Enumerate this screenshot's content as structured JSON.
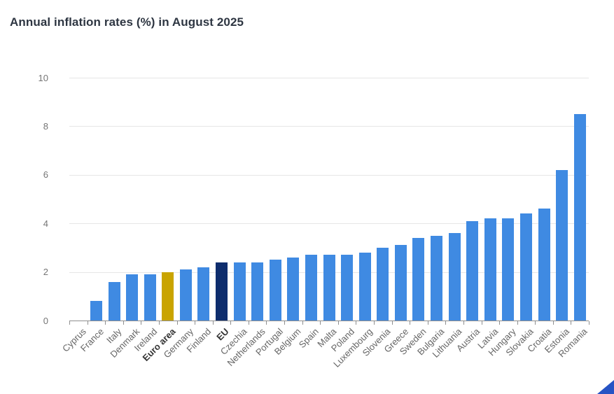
{
  "header": {
    "title": "Annual inflation rates (%) in August 2025"
  },
  "chart_data": {
    "type": "bar",
    "title": "Annual inflation rates (%) in August 2025",
    "xlabel": "",
    "ylabel": "",
    "ylim": [
      0,
      10
    ],
    "yticks": [
      0,
      2,
      4,
      6,
      8,
      10
    ],
    "grid": true,
    "legend": false,
    "categories": [
      "Cyprus",
      "France",
      "Italy",
      "Denmark",
      "Ireland",
      "Euro area",
      "Germany",
      "Finland",
      "EU",
      "Czechia",
      "Netherlands",
      "Portugal",
      "Belgium",
      "Spain",
      "Malta",
      "Poland",
      "Luxembourg",
      "Slovenia",
      "Greece",
      "Sweden",
      "Bulgaria",
      "Lithuania",
      "Austria",
      "Latvia",
      "Hungary",
      "Slovakia",
      "Croatia",
      "Estonia",
      "Romania"
    ],
    "values": [
      0.0,
      0.8,
      1.6,
      1.9,
      1.9,
      2.0,
      2.1,
      2.2,
      2.4,
      2.4,
      2.4,
      2.5,
      2.6,
      2.7,
      2.7,
      2.7,
      2.8,
      3.0,
      3.1,
      3.4,
      3.5,
      3.6,
      4.1,
      4.2,
      4.2,
      4.4,
      4.6,
      6.2,
      8.5
    ],
    "emphasized_categories": [
      "Euro area",
      "EU"
    ],
    "bar_colors_by_category": {
      "Euro area": "#c9a400",
      "EU": "#0e2d6d"
    },
    "colors": {
      "bar_default": "#3f8ae2",
      "gridline": "#e6e6e6",
      "axis": "#8f8f8f",
      "axis_label": "#757575",
      "category_label": "#666666",
      "category_label_emphasis": "#333333",
      "title": "#2e3642",
      "corner_triangle": "#2653c4"
    }
  }
}
